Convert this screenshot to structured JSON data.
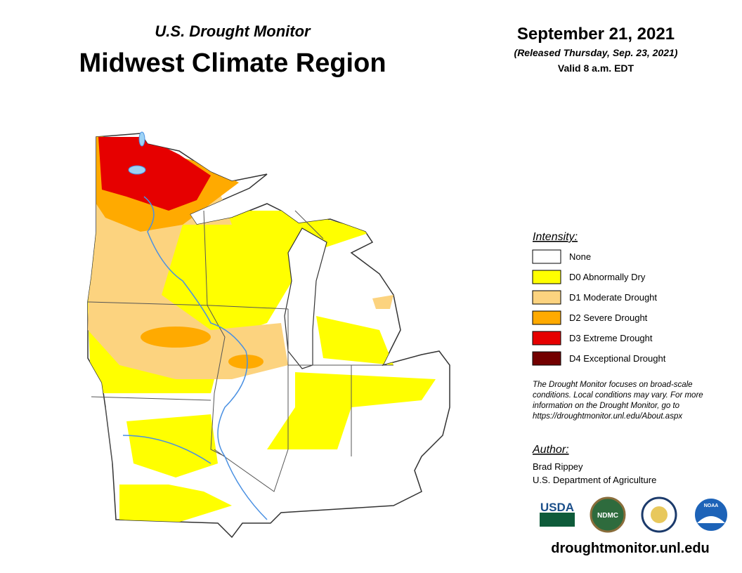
{
  "header": {
    "subtitle": "U.S. Drought Monitor",
    "title": "Midwest Climate Region"
  },
  "date": {
    "date": "September 21, 2021",
    "released": "(Released Thursday, Sep. 23, 2021)",
    "valid": "Valid 8 a.m. EDT"
  },
  "legend": {
    "title": "Intensity:",
    "items": [
      {
        "label": "None",
        "color": "#ffffff"
      },
      {
        "label": "D0 Abnormally Dry",
        "color": "#ffff00"
      },
      {
        "label": "D1 Moderate Drought",
        "color": "#fcd37f"
      },
      {
        "label": "D2 Severe Drought",
        "color": "#ffaa00"
      },
      {
        "label": "D3 Extreme Drought",
        "color": "#e60000"
      },
      {
        "label": "D4 Exceptional Drought",
        "color": "#730000"
      }
    ]
  },
  "note": [
    "The Drought Monitor focuses on broad-scale",
    "conditions. Local conditions may vary. For more",
    "information on the Drought Monitor, go to",
    "https://droughtmonitor.unl.edu/About.aspx"
  ],
  "author": {
    "title": "Author:",
    "lines": [
      "Brad Rippey",
      "U.S. Department of Agriculture"
    ]
  },
  "logos": [
    "USDA",
    "NDMC",
    "NOAA"
  ],
  "url": "droughtmonitor.unl.edu"
}
